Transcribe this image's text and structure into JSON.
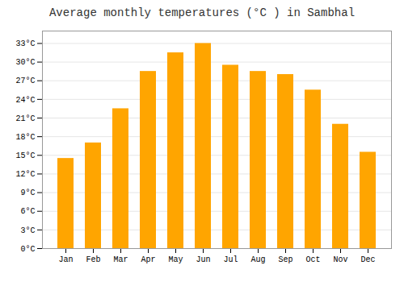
{
  "chart_data": {
    "type": "bar",
    "title": "Average monthly temperatures (°C ) in Sambhal",
    "categories": [
      "Jan",
      "Feb",
      "Mar",
      "Apr",
      "May",
      "Jun",
      "Jul",
      "Aug",
      "Sep",
      "Oct",
      "Nov",
      "Dec"
    ],
    "values": [
      14.5,
      17.0,
      22.5,
      28.5,
      31.5,
      33.0,
      29.5,
      28.5,
      28.0,
      25.5,
      20.0,
      15.5
    ],
    "color": "#FFA500",
    "ylim": [
      0,
      35
    ],
    "yticks": [
      {
        "value": 0,
        "label": "0°C"
      },
      {
        "value": 3,
        "label": "3°C"
      },
      {
        "value": 6,
        "label": "6°C"
      },
      {
        "value": 9,
        "label": "9°C"
      },
      {
        "value": 12,
        "label": "12°C"
      },
      {
        "value": 15,
        "label": "15°C"
      },
      {
        "value": 18,
        "label": "18°C"
      },
      {
        "value": 21,
        "label": "21°C"
      },
      {
        "value": 24,
        "label": "24°C"
      },
      {
        "value": 27,
        "label": "27°C"
      },
      {
        "value": 30,
        "label": "30°C"
      },
      {
        "value": 33,
        "label": "33°C"
      }
    ],
    "grid": true
  }
}
